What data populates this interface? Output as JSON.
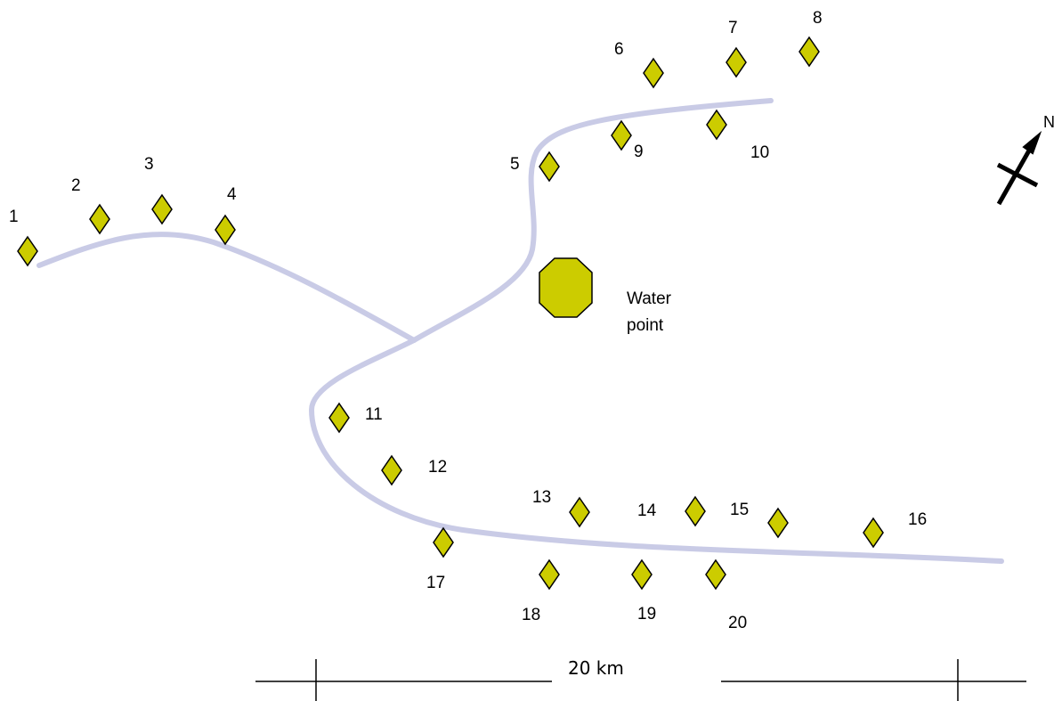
{
  "map": {
    "river_color": "#c9cbe6",
    "marker_fill": "#cccc00",
    "marker_stroke": "#000000",
    "sites": [
      {
        "label": "1"
      },
      {
        "label": "2"
      },
      {
        "label": "3"
      },
      {
        "label": "4"
      },
      {
        "label": "5"
      },
      {
        "label": "6"
      },
      {
        "label": "7"
      },
      {
        "label": "8"
      },
      {
        "label": "9"
      },
      {
        "label": "10"
      },
      {
        "label": "11"
      },
      {
        "label": "12"
      },
      {
        "label": "13"
      },
      {
        "label": "14"
      },
      {
        "label": "15"
      },
      {
        "label": "16"
      },
      {
        "label": "17"
      },
      {
        "label": "18"
      },
      {
        "label": "19"
      },
      {
        "label": "20"
      }
    ],
    "water_point": {
      "label_line1": "Water",
      "label_line2": "point",
      "icon": "octagon-icon"
    },
    "scale_bar": {
      "label": "20 km"
    },
    "north_arrow": {
      "label": "N",
      "icon": "north-arrow-icon"
    }
  }
}
